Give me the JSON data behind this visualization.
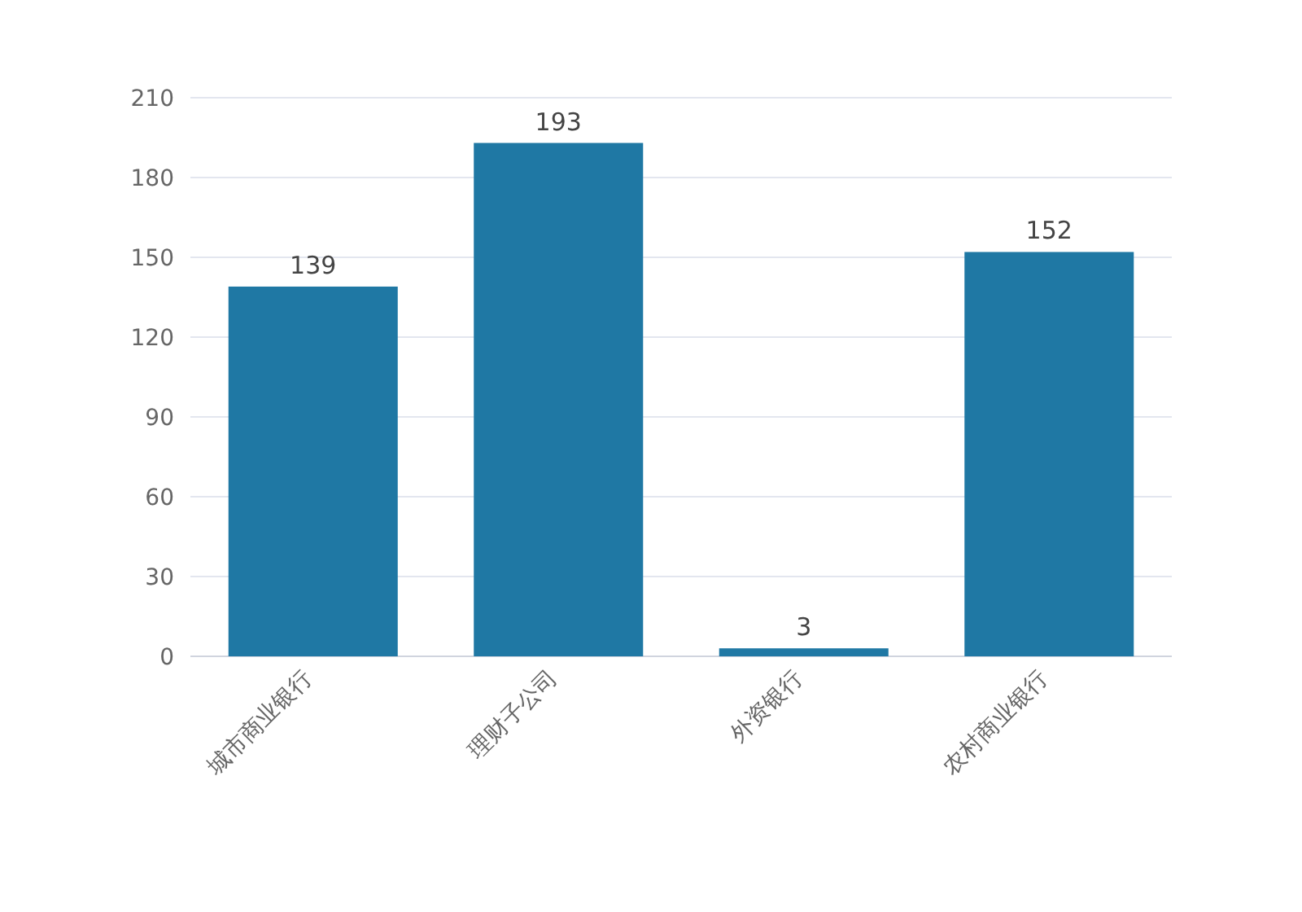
{
  "chart_data": {
    "type": "bar",
    "categories": [
      "城市商业银行",
      "理财子公司",
      "外资银行",
      "农村商业银行"
    ],
    "values": [
      139,
      193,
      3,
      152
    ],
    "color": "#1f78a4",
    "ylim": [
      0,
      210
    ],
    "yticks": [
      0,
      30,
      60,
      90,
      120,
      150,
      180,
      210
    ],
    "grid": "y",
    "data_labels": true
  }
}
